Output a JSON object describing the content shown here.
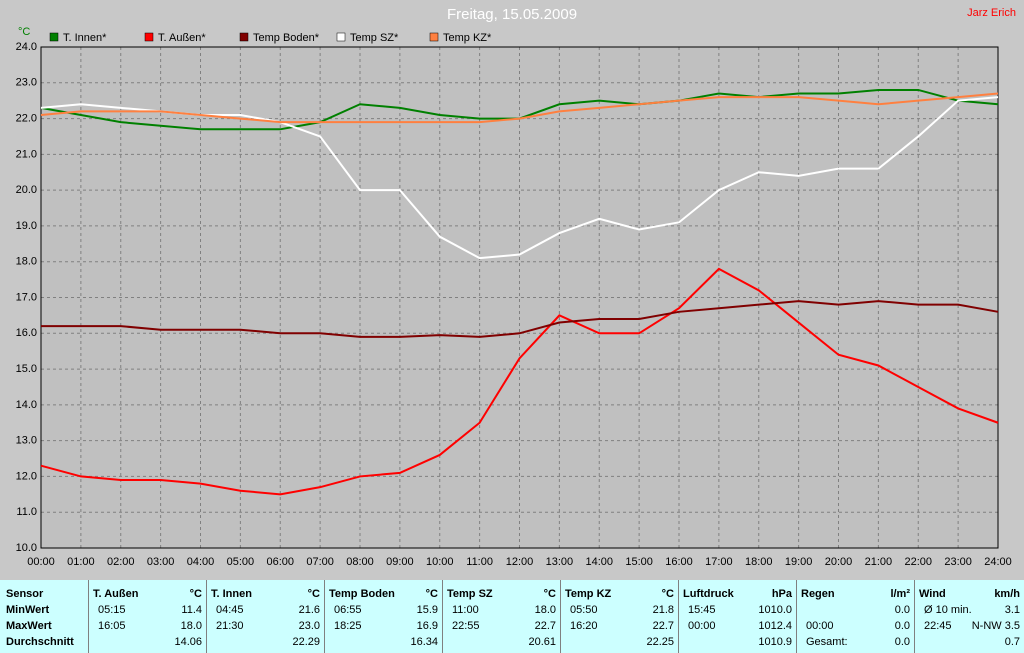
{
  "chart_data": {
    "type": "line",
    "title": "Freitag, 15.05.2009",
    "author": "Jarz Erich",
    "y_unit": "°C",
    "x": [
      0,
      1,
      2,
      3,
      4,
      5,
      6,
      7,
      8,
      9,
      10,
      11,
      12,
      13,
      14,
      15,
      16,
      17,
      18,
      19,
      20,
      21,
      22,
      23,
      24
    ],
    "xlim": [
      0,
      24
    ],
    "xticks": [
      {
        "value": 0,
        "label": "00:00"
      },
      {
        "value": 1,
        "label": "01:00"
      },
      {
        "value": 2,
        "label": "02:00"
      },
      {
        "value": 3,
        "label": "03:00"
      },
      {
        "value": 4,
        "label": "04:00"
      },
      {
        "value": 5,
        "label": "05:00"
      },
      {
        "value": 6,
        "label": "06:00"
      },
      {
        "value": 7,
        "label": "07:00"
      },
      {
        "value": 8,
        "label": "08:00"
      },
      {
        "value": 9,
        "label": "09:00"
      },
      {
        "value": 10,
        "label": "10:00"
      },
      {
        "value": 11,
        "label": "11:00"
      },
      {
        "value": 12,
        "label": "12:00"
      },
      {
        "value": 13,
        "label": "13:00"
      },
      {
        "value": 14,
        "label": "14:00"
      },
      {
        "value": 15,
        "label": "15:00"
      },
      {
        "value": 16,
        "label": "16:00"
      },
      {
        "value": 17,
        "label": "17:00"
      },
      {
        "value": 18,
        "label": "18:00"
      },
      {
        "value": 19,
        "label": "19:00"
      },
      {
        "value": 20,
        "label": "20:00"
      },
      {
        "value": 21,
        "label": "21:00"
      },
      {
        "value": 22,
        "label": "22:00"
      },
      {
        "value": 23,
        "label": "23:00"
      },
      {
        "value": 24,
        "label": "24:00"
      }
    ],
    "ylim": [
      10,
      24
    ],
    "yticks": [
      {
        "value": 10,
        "label": "10.0"
      },
      {
        "value": 11,
        "label": "11.0"
      },
      {
        "value": 12,
        "label": "12.0"
      },
      {
        "value": 13,
        "label": "13.0"
      },
      {
        "value": 14,
        "label": "14.0"
      },
      {
        "value": 15,
        "label": "15.0"
      },
      {
        "value": 16,
        "label": "16.0"
      },
      {
        "value": 17,
        "label": "17.0"
      },
      {
        "value": 18,
        "label": "18.0"
      },
      {
        "value": 19,
        "label": "19.0"
      },
      {
        "value": 20,
        "label": "20.0"
      },
      {
        "value": 21,
        "label": "21.0"
      },
      {
        "value": 22,
        "label": "22.0"
      },
      {
        "value": 23,
        "label": "23.0"
      },
      {
        "value": 24,
        "label": "24.0"
      }
    ],
    "grid": true,
    "series": [
      {
        "name": "T. Innen*",
        "color": "#008000",
        "values": [
          22.3,
          22.1,
          21.9,
          21.8,
          21.7,
          21.7,
          21.7,
          21.9,
          22.4,
          22.3,
          22.1,
          22.0,
          22.0,
          22.4,
          22.5,
          22.4,
          22.5,
          22.7,
          22.6,
          22.7,
          22.7,
          22.8,
          22.8,
          22.5,
          22.4
        ]
      },
      {
        "name": "T. Außen*",
        "color": "#ff0000",
        "values": [
          12.3,
          12.0,
          11.9,
          11.9,
          11.8,
          11.6,
          11.5,
          11.7,
          12.0,
          12.1,
          12.6,
          13.5,
          15.3,
          16.5,
          16.0,
          16.0,
          16.7,
          17.8,
          17.2,
          16.3,
          15.4,
          15.1,
          14.5,
          13.9,
          13.5
        ]
      },
      {
        "name": "Temp Boden*",
        "color": "#800000",
        "values": [
          16.2,
          16.2,
          16.2,
          16.1,
          16.1,
          16.1,
          16.0,
          16.0,
          15.9,
          15.9,
          15.95,
          15.9,
          16.0,
          16.3,
          16.4,
          16.4,
          16.6,
          16.7,
          16.8,
          16.9,
          16.8,
          16.9,
          16.8,
          16.8,
          16.6
        ]
      },
      {
        "name": "Temp SZ*",
        "color": "#ffffff",
        "values": [
          22.3,
          22.4,
          22.3,
          22.2,
          22.1,
          22.1,
          21.9,
          21.5,
          20.0,
          20.0,
          18.7,
          18.1,
          18.2,
          18.8,
          19.2,
          18.9,
          19.1,
          20.0,
          20.5,
          20.4,
          20.6,
          20.6,
          21.5,
          22.5,
          22.6
        ]
      },
      {
        "name": "Temp KZ*",
        "color": "#ff8040",
        "values": [
          22.1,
          22.2,
          22.2,
          22.2,
          22.1,
          22.0,
          21.9,
          21.9,
          21.9,
          21.9,
          21.9,
          21.9,
          22.0,
          22.2,
          22.3,
          22.4,
          22.5,
          22.6,
          22.6,
          22.6,
          22.5,
          22.4,
          22.5,
          22.6,
          22.7
        ]
      }
    ]
  },
  "table": {
    "header": "Sensor",
    "row_labels": [
      "MinWert",
      "MaxWert",
      "Durchschnitt"
    ],
    "sections": [
      {
        "name": "T. Außen",
        "unit": "°C",
        "rows": [
          [
            "05:15",
            "11.4"
          ],
          [
            "16:05",
            "18.0"
          ],
          [
            "14.06"
          ]
        ]
      },
      {
        "name": "T. Innen",
        "unit": "°C",
        "rows": [
          [
            "04:45",
            "21.6"
          ],
          [
            "21:30",
            "23.0"
          ],
          [
            "22.29"
          ]
        ]
      },
      {
        "name": "Temp Boden",
        "unit": "°C",
        "rows": [
          [
            "06:55",
            "15.9"
          ],
          [
            "18:25",
            "16.9"
          ],
          [
            "16.34"
          ]
        ]
      },
      {
        "name": "Temp SZ",
        "unit": "°C",
        "rows": [
          [
            "11:00",
            "18.0"
          ],
          [
            "22:55",
            "22.7"
          ],
          [
            "20.61"
          ]
        ]
      },
      {
        "name": "Temp KZ",
        "unit": "°C",
        "rows": [
          [
            "05:50",
            "21.8"
          ],
          [
            "16:20",
            "22.7"
          ],
          [
            "22.25"
          ]
        ]
      },
      {
        "name": "Luftdruck",
        "unit": "hPa",
        "rows": [
          [
            "15:45",
            "1010.0"
          ],
          [
            "00:00",
            "1012.4"
          ],
          [
            "1010.9"
          ]
        ]
      },
      {
        "name": "Regen",
        "unit": "l/m²",
        "rows": [
          [
            "0.0"
          ],
          [
            "00:00",
            "0.0"
          ],
          [
            "Gesamt:",
            "0.0"
          ]
        ]
      },
      {
        "name": "Wind",
        "unit": "km/h",
        "rows": [
          [
            "Ø 10 min.",
            "3.1"
          ],
          [
            "22:45",
            "N-NW 3.5"
          ],
          [
            "0.7"
          ]
        ]
      }
    ]
  }
}
